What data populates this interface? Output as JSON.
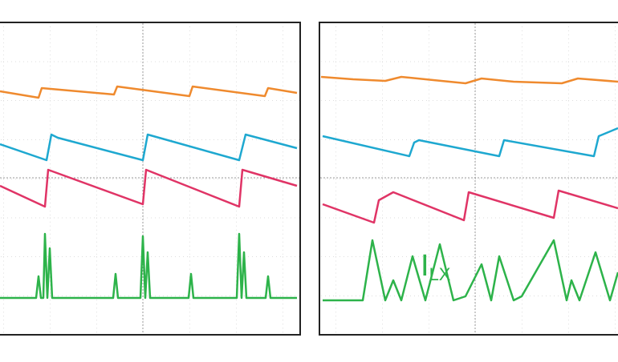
{
  "right_panel": {
    "trace_label": {
      "symbol": "I",
      "subscript": "LX"
    }
  }
}
